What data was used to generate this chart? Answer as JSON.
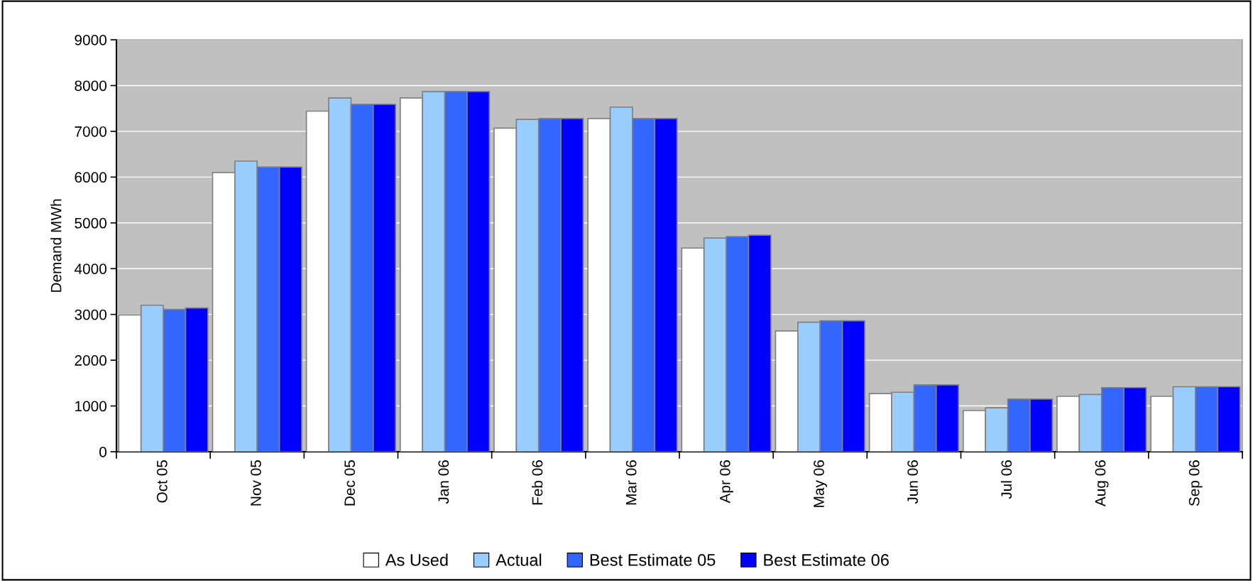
{
  "chart_data": {
    "type": "bar",
    "ylabel": "Demand MWh",
    "categories": [
      "Oct 05",
      "Nov 05",
      "Dec 05",
      "Jan 06",
      "Feb 06",
      "Mar 06",
      "Apr 06",
      "May 06",
      "Jun 06",
      "Jul 06",
      "Aug 06",
      "Sep 06"
    ],
    "series": [
      {
        "name": "As Used",
        "color": "#ffffff",
        "values": [
          2990,
          6100,
          7440,
          7730,
          7070,
          7280,
          4450,
          2640,
          1270,
          900,
          1210,
          1210
        ]
      },
      {
        "name": "Actual",
        "color": "#99ccff",
        "values": [
          3200,
          6350,
          7730,
          7870,
          7260,
          7530,
          4670,
          2830,
          1300,
          960,
          1250,
          1420
        ]
      },
      {
        "name": "Best Estimate 05",
        "color": "#3366ff",
        "values": [
          3110,
          6220,
          7590,
          7870,
          7280,
          7280,
          4700,
          2860,
          1460,
          1150,
          1400,
          1420
        ]
      },
      {
        "name": "Best Estimate 06",
        "color": "#0000ff",
        "values": [
          3140,
          6220,
          7590,
          7870,
          7280,
          7280,
          4730,
          2860,
          1460,
          1150,
          1400,
          1420
        ]
      }
    ],
    "ylim": [
      0,
      9000
    ],
    "yticks": [
      0,
      1000,
      2000,
      3000,
      4000,
      5000,
      6000,
      7000,
      8000,
      9000
    ],
    "grid": "y",
    "legend": "bottom"
  }
}
